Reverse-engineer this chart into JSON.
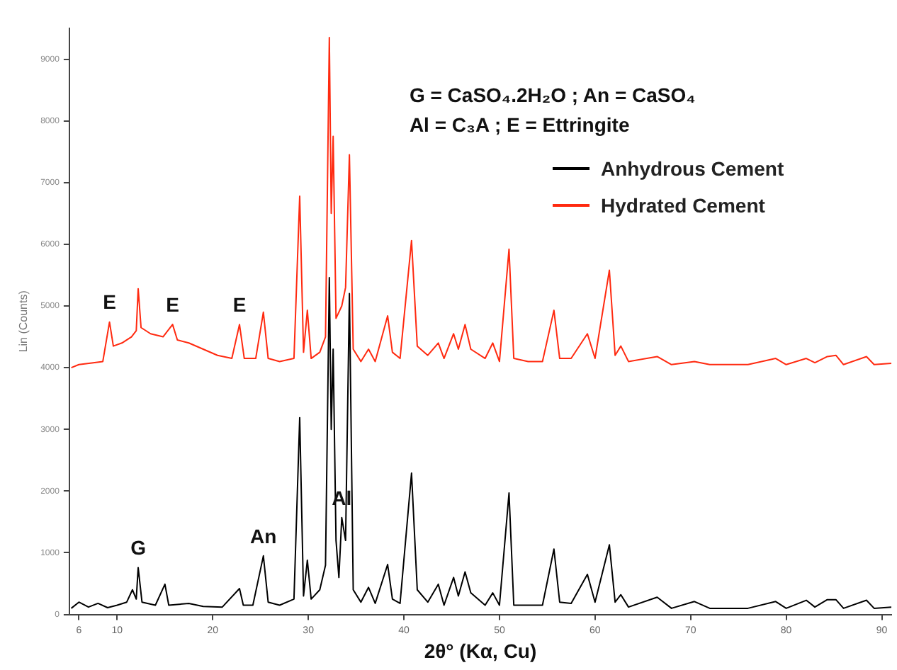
{
  "chart_data": {
    "type": "line",
    "xlabel": "2θ° (Kα, Cu)",
    "ylabel": "Lin (Counts)",
    "xlim": [
      5,
      91
    ],
    "xticks": [
      6,
      10,
      20,
      30,
      40,
      50,
      60,
      70,
      80,
      90
    ],
    "ylim": [
      0,
      9500
    ],
    "yticks": [
      0,
      1000,
      2000,
      3000,
      4000,
      5000,
      6000,
      7000,
      8000,
      9000
    ],
    "grid": false,
    "legend": "top right",
    "annotations": [
      "G = CaSO₄.2H₂O ; An = CaSO₄",
      "Al = C₃A ; E = Ettringite",
      {
        "text": "E",
        "x": 9.2,
        "y": 4740
      },
      {
        "text": "E",
        "x": 15.8,
        "y": 4700
      },
      {
        "text": "E",
        "x": 22.8,
        "y": 4700
      },
      {
        "text": "G",
        "x": 12.2,
        "y": 760
      },
      {
        "text": "An",
        "x": 25.3,
        "y": 950
      },
      {
        "text": "Al",
        "x": 33.5,
        "y": 1570
      }
    ],
    "series": [
      {
        "name": "Anhydrous Cement",
        "color": "#000000",
        "x": [
          5.2,
          6,
          7,
          8,
          9,
          10,
          11,
          11.6,
          12.0,
          12.2,
          12.6,
          14,
          15.0,
          15.4,
          17.5,
          19,
          21,
          22.8,
          23.2,
          24.2,
          25.3,
          25.8,
          27,
          28.5,
          29.1,
          29.5,
          29.9,
          30.3,
          31.2,
          31.8,
          32.2,
          32.4,
          32.6,
          32.9,
          33.2,
          33.5,
          33.9,
          34.3,
          34.7,
          35.5,
          36.3,
          37,
          38.3,
          38.8,
          39.6,
          40.8,
          41.4,
          42.5,
          43.6,
          44.2,
          45.2,
          45.7,
          46.4,
          47,
          48.5,
          49.3,
          50,
          51.0,
          51.5,
          53,
          54.5,
          55.7,
          56.3,
          57.5,
          59.2,
          60,
          61.5,
          62.1,
          62.7,
          63.5,
          66.5,
          68,
          70.4,
          72,
          76,
          78.9,
          80,
          82.1,
          83,
          84.3,
          85.2,
          86,
          88.4,
          89.2,
          91
        ],
        "values": [
          100,
          200,
          120,
          180,
          110,
          150,
          200,
          400,
          250,
          760,
          200,
          150,
          490,
          150,
          180,
          130,
          120,
          420,
          150,
          150,
          950,
          200,
          150,
          250,
          3190,
          300,
          880,
          250,
          400,
          800,
          5460,
          3000,
          4300,
          1200,
          600,
          1570,
          1200,
          5200,
          400,
          200,
          440,
          180,
          810,
          250,
          180,
          2290,
          400,
          200,
          490,
          150,
          600,
          300,
          690,
          350,
          150,
          350,
          150,
          1970,
          150,
          150,
          150,
          1060,
          200,
          180,
          650,
          200,
          1130,
          200,
          320,
          120,
          280,
          100,
          210,
          100,
          100,
          210,
          100,
          230,
          120,
          240,
          240,
          100,
          230,
          100,
          120
        ]
      },
      {
        "name": "Hydrated Cement",
        "color": "#ff2a10",
        "x": [
          5.2,
          6,
          7.5,
          8.5,
          9.2,
          9.6,
          10.5,
          11.5,
          12.0,
          12.2,
          12.5,
          13.5,
          14.8,
          15.3,
          15.8,
          16.3,
          17.5,
          19,
          20.5,
          22,
          22.8,
          23.3,
          24.5,
          25.3,
          25.8,
          27,
          28.5,
          29.1,
          29.5,
          29.9,
          30.3,
          31.2,
          31.8,
          32.2,
          32.4,
          32.6,
          32.9,
          33.5,
          33.9,
          34.3,
          34.7,
          35.5,
          36.3,
          37,
          38.3,
          38.8,
          39.6,
          40.8,
          41.4,
          42.5,
          43.6,
          44.2,
          45.2,
          45.7,
          46.4,
          47,
          48.5,
          49.3,
          50,
          51.0,
          51.5,
          53,
          54.5,
          55.7,
          56.3,
          57.5,
          59.2,
          60,
          61.5,
          62.1,
          62.7,
          63.5,
          66.5,
          68,
          70.4,
          72,
          76,
          78.9,
          80,
          82.1,
          83,
          84.3,
          85.2,
          86,
          88.4,
          89.2,
          91
        ],
        "values": [
          4000,
          4050,
          4080,
          4100,
          4740,
          4350,
          4400,
          4500,
          4600,
          5280,
          4650,
          4550,
          4500,
          4600,
          4700,
          4450,
          4400,
          4300,
          4200,
          4150,
          4700,
          4150,
          4150,
          4900,
          4150,
          4100,
          4150,
          6780,
          4250,
          4930,
          4150,
          4250,
          4500,
          9350,
          6500,
          7750,
          4800,
          5000,
          5300,
          7450,
          4300,
          4100,
          4300,
          4100,
          4840,
          4250,
          4150,
          6060,
          4350,
          4200,
          4400,
          4150,
          4550,
          4300,
          4700,
          4300,
          4150,
          4400,
          4100,
          5920,
          4150,
          4100,
          4100,
          4930,
          4150,
          4150,
          4550,
          4150,
          5580,
          4200,
          4350,
          4100,
          4180,
          4050,
          4100,
          4050,
          4050,
          4150,
          4050,
          4150,
          4080,
          4180,
          4200,
          4050,
          4180,
          4050,
          4070
        ]
      }
    ]
  }
}
